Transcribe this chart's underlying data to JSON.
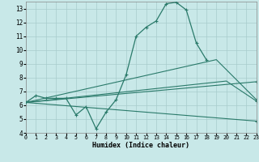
{
  "xlabel": "Humidex (Indice chaleur)",
  "xlim": [
    0,
    23
  ],
  "ylim": [
    4,
    13.5
  ],
  "yticks": [
    4,
    5,
    6,
    7,
    8,
    9,
    10,
    11,
    12,
    13
  ],
  "xticks": [
    0,
    1,
    2,
    3,
    4,
    5,
    6,
    7,
    8,
    9,
    10,
    11,
    12,
    13,
    14,
    15,
    16,
    17,
    18,
    19,
    20,
    21,
    22,
    23
  ],
  "bg_color": "#c8e8e8",
  "grid_color": "#a8cccc",
  "line_color": "#2a7a6a",
  "main_x": [
    0,
    1,
    2,
    3,
    4,
    5,
    6,
    7,
    8,
    9,
    10,
    11,
    12,
    13,
    14,
    15,
    16,
    17,
    18
  ],
  "main_y": [
    6.2,
    6.7,
    6.5,
    6.5,
    6.5,
    5.3,
    5.9,
    4.3,
    5.5,
    6.4,
    8.2,
    11.0,
    11.65,
    12.1,
    13.35,
    13.45,
    12.9,
    10.5,
    9.3
  ],
  "smooth_lines": [
    {
      "x": [
        0,
        23
      ],
      "y": [
        6.2,
        4.85
      ]
    },
    {
      "x": [
        0,
        23
      ],
      "y": [
        6.2,
        7.7
      ]
    },
    {
      "x": [
        0,
        20,
        23
      ],
      "y": [
        6.2,
        7.75,
        6.3
      ]
    },
    {
      "x": [
        0,
        19,
        23
      ],
      "y": [
        6.2,
        9.3,
        6.4
      ]
    }
  ]
}
